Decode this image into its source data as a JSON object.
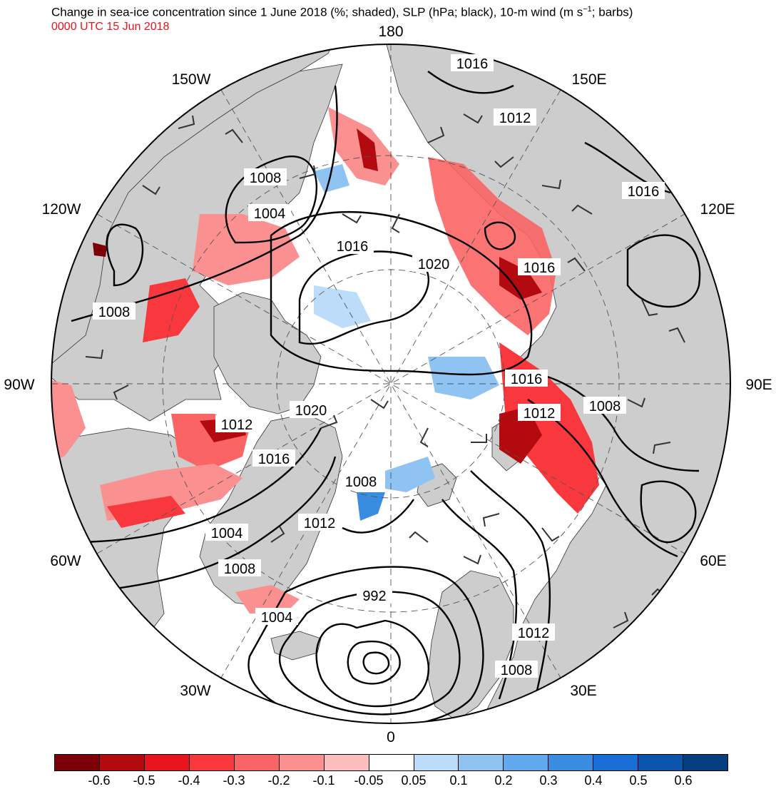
{
  "title": {
    "main": "Change in sea-ice concentration since 1 June 2018 (%; shaded), SLP (hPa; black), 10-m wind (m s",
    "sup": "−1",
    "tail": "; barbs)",
    "valid_time": "0000 UTC 15 Jun 2018"
  },
  "longitude_labels": [
    {
      "text": "180",
      "lon": 180
    },
    {
      "text": "150W",
      "lon": -150
    },
    {
      "text": "150E",
      "lon": 150
    },
    {
      "text": "120W",
      "lon": -120
    },
    {
      "text": "120E",
      "lon": 120
    },
    {
      "text": "90W",
      "lon": -90
    },
    {
      "text": "90E",
      "lon": 90
    },
    {
      "text": "60W",
      "lon": -60
    },
    {
      "text": "60E",
      "lon": 60
    },
    {
      "text": "30W",
      "lon": -30
    },
    {
      "text": "30E",
      "lon": 30
    },
    {
      "text": "0",
      "lon": 0
    }
  ],
  "slp_contour_labels": [
    "1016",
    "1012",
    "1016",
    "1008",
    "1004",
    "1016",
    "1020",
    "1016",
    "1008",
    "1016",
    "1012",
    "1008",
    "1020",
    "1012",
    "1016",
    "1008",
    "1012",
    "1004",
    "1008",
    "1004",
    "992",
    "1012",
    "1008"
  ],
  "colorbar": {
    "colors": [
      "#7d0008",
      "#b30a0f",
      "#e8141c",
      "#f8383d",
      "#fb6464",
      "#fb9090",
      "#fcbdbd",
      "#ffffff",
      "#bcdcfa",
      "#8fc3f2",
      "#62a8ec",
      "#3a8ce0",
      "#1a6fd6",
      "#0b55ad",
      "#063e82"
    ],
    "tick_labels": [
      "-0.6",
      "-0.5",
      "-0.4",
      "-0.3",
      "-0.2",
      "-0.1",
      "-0.05",
      "0.05",
      "0.1",
      "0.2",
      "0.3",
      "0.4",
      "0.5",
      "0.6"
    ]
  }
}
